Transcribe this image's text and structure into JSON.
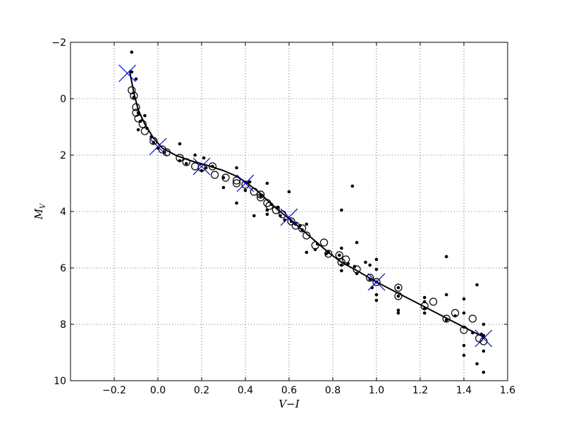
{
  "chart_data": {
    "type": "scatter",
    "title": "",
    "xlabel": "V−I",
    "ylabel_main": "M",
    "ylabel_sub": "V",
    "xlim": [
      -0.4,
      1.6
    ],
    "ylim": [
      -2,
      10
    ],
    "y_inverted": true,
    "grid": true,
    "grid_style": "dotted",
    "x_ticks": [
      -0.2,
      0.0,
      0.2,
      0.4,
      0.6,
      0.8,
      1.0,
      1.2,
      1.4,
      1.6
    ],
    "x_tick_labels": [
      "−0.2",
      "0.0",
      "0.2",
      "0.4",
      "0.6",
      "0.8",
      "1.0",
      "1.2",
      "1.4",
      "1.6"
    ],
    "y_ticks": [
      -2,
      0,
      2,
      4,
      6,
      8,
      10
    ],
    "y_tick_labels": [
      "−2",
      "0",
      "2",
      "4",
      "6",
      "8",
      "10"
    ],
    "series": [
      {
        "marker": "dot",
        "color": "#000000",
        "points": [
          [
            -0.12,
            -1.65
          ],
          [
            -0.12,
            -0.95
          ],
          [
            -0.1,
            -0.7
          ],
          [
            -0.11,
            -0.05
          ],
          [
            -0.09,
            0.5
          ],
          [
            -0.08,
            0.8
          ],
          [
            -0.09,
            1.1
          ],
          [
            -0.06,
            0.6
          ],
          [
            -0.05,
            1.05
          ],
          [
            -0.03,
            1.35
          ],
          [
            -0.02,
            1.55
          ],
          [
            0.0,
            1.75
          ],
          [
            0.03,
            1.9
          ],
          [
            0.1,
            1.6
          ],
          [
            0.1,
            2.2
          ],
          [
            0.13,
            2.3
          ],
          [
            0.17,
            2.0
          ],
          [
            0.2,
            2.55
          ],
          [
            0.21,
            2.1
          ],
          [
            0.22,
            2.45
          ],
          [
            0.25,
            2.4
          ],
          [
            0.3,
            2.8
          ],
          [
            0.3,
            3.15
          ],
          [
            0.36,
            2.45
          ],
          [
            0.36,
            3.7
          ],
          [
            0.4,
            3.25
          ],
          [
            0.42,
            2.95
          ],
          [
            0.44,
            4.15
          ],
          [
            0.47,
            3.45
          ],
          [
            0.5,
            3.0
          ],
          [
            0.5,
            3.95
          ],
          [
            0.5,
            4.1
          ],
          [
            0.52,
            3.75
          ],
          [
            0.55,
            3.85
          ],
          [
            0.56,
            4.15
          ],
          [
            0.58,
            4.3
          ],
          [
            0.6,
            3.3
          ],
          [
            0.61,
            4.35
          ],
          [
            0.63,
            4.45
          ],
          [
            0.65,
            4.5
          ],
          [
            0.66,
            4.65
          ],
          [
            0.68,
            4.45
          ],
          [
            0.68,
            5.45
          ],
          [
            0.72,
            5.35
          ],
          [
            0.73,
            5.15
          ],
          [
            0.77,
            5.5
          ],
          [
            0.78,
            5.45
          ],
          [
            0.83,
            5.55
          ],
          [
            0.84,
            3.95
          ],
          [
            0.84,
            5.3
          ],
          [
            0.84,
            5.9
          ],
          [
            0.84,
            6.1
          ],
          [
            0.87,
            5.85
          ],
          [
            0.89,
            3.1
          ],
          [
            0.9,
            5.95
          ],
          [
            0.91,
            5.1
          ],
          [
            0.91,
            6.2
          ],
          [
            0.95,
            5.8
          ],
          [
            0.97,
            5.9
          ],
          [
            0.97,
            6.4
          ],
          [
            0.98,
            6.7
          ],
          [
            1.0,
            5.7
          ],
          [
            1.0,
            6.05
          ],
          [
            1.0,
            6.5
          ],
          [
            1.0,
            6.95
          ],
          [
            1.0,
            7.15
          ],
          [
            1.1,
            6.7
          ],
          [
            1.1,
            7.0
          ],
          [
            1.1,
            7.5
          ],
          [
            1.1,
            7.6
          ],
          [
            1.22,
            7.05
          ],
          [
            1.22,
            7.2
          ],
          [
            1.22,
            7.45
          ],
          [
            1.22,
            7.6
          ],
          [
            1.32,
            5.6
          ],
          [
            1.32,
            6.95
          ],
          [
            1.32,
            7.85
          ],
          [
            1.36,
            7.7
          ],
          [
            1.4,
            7.1
          ],
          [
            1.4,
            7.6
          ],
          [
            1.4,
            8.1
          ],
          [
            1.4,
            8.75
          ],
          [
            1.4,
            9.1
          ],
          [
            1.44,
            8.3
          ],
          [
            1.46,
            6.6
          ],
          [
            1.46,
            9.4
          ],
          [
            1.48,
            8.35
          ],
          [
            1.49,
            8.0
          ],
          [
            1.49,
            8.4
          ],
          [
            1.49,
            8.95
          ],
          [
            1.49,
            9.7
          ]
        ]
      },
      {
        "marker": "open-circle",
        "color": "#000000",
        "points": [
          [
            -0.12,
            -0.3
          ],
          [
            -0.11,
            -0.1
          ],
          [
            -0.1,
            0.3
          ],
          [
            -0.1,
            0.5
          ],
          [
            -0.09,
            0.7
          ],
          [
            -0.07,
            0.9
          ],
          [
            -0.06,
            1.15
          ],
          [
            -0.02,
            1.5
          ],
          [
            0.02,
            1.8
          ],
          [
            0.04,
            1.9
          ],
          [
            0.1,
            2.1
          ],
          [
            0.13,
            2.25
          ],
          [
            0.17,
            2.4
          ],
          [
            0.2,
            2.45
          ],
          [
            0.25,
            2.4
          ],
          [
            0.26,
            2.7
          ],
          [
            0.31,
            2.8
          ],
          [
            0.36,
            2.9
          ],
          [
            0.36,
            3.0
          ],
          [
            0.4,
            3.05
          ],
          [
            0.44,
            3.3
          ],
          [
            0.47,
            3.4
          ],
          [
            0.47,
            3.5
          ],
          [
            0.5,
            3.7
          ],
          [
            0.51,
            3.8
          ],
          [
            0.54,
            3.95
          ],
          [
            0.57,
            4.1
          ],
          [
            0.61,
            4.35
          ],
          [
            0.63,
            4.5
          ],
          [
            0.66,
            4.6
          ],
          [
            0.68,
            4.85
          ],
          [
            0.72,
            5.2
          ],
          [
            0.76,
            5.1
          ],
          [
            0.78,
            5.5
          ],
          [
            0.83,
            5.55
          ],
          [
            0.84,
            5.8
          ],
          [
            0.86,
            5.7
          ],
          [
            0.91,
            6.05
          ],
          [
            0.97,
            6.35
          ],
          [
            1.0,
            6.5
          ],
          [
            1.1,
            6.7
          ],
          [
            1.1,
            7.0
          ],
          [
            1.22,
            7.35
          ],
          [
            1.26,
            7.2
          ],
          [
            1.32,
            7.8
          ],
          [
            1.36,
            7.6
          ],
          [
            1.4,
            8.2
          ],
          [
            1.44,
            7.8
          ],
          [
            1.47,
            8.5
          ],
          [
            1.49,
            8.6
          ]
        ]
      },
      {
        "marker": "x",
        "color": "#0000cc",
        "points": [
          [
            -0.14,
            -0.9
          ],
          [
            0.0,
            1.7
          ],
          [
            0.2,
            2.4
          ],
          [
            0.4,
            3.0
          ],
          [
            0.6,
            4.2
          ],
          [
            1.0,
            6.5
          ],
          [
            1.49,
            8.5
          ]
        ]
      },
      {
        "marker": "line",
        "color": "#000000",
        "points": [
          [
            -0.13,
            -1.0
          ],
          [
            -0.11,
            -0.2
          ],
          [
            -0.09,
            0.4
          ],
          [
            -0.06,
            0.9
          ],
          [
            -0.02,
            1.4
          ],
          [
            0.02,
            1.75
          ],
          [
            0.08,
            2.0
          ],
          [
            0.15,
            2.2
          ],
          [
            0.22,
            2.35
          ],
          [
            0.3,
            2.55
          ],
          [
            0.36,
            2.75
          ],
          [
            0.4,
            2.95
          ],
          [
            0.46,
            3.3
          ],
          [
            0.5,
            3.6
          ],
          [
            0.55,
            3.95
          ],
          [
            0.6,
            4.25
          ],
          [
            0.66,
            4.65
          ],
          [
            0.72,
            5.05
          ],
          [
            0.78,
            5.45
          ],
          [
            0.84,
            5.8
          ],
          [
            0.9,
            6.05
          ],
          [
            1.0,
            6.5
          ],
          [
            1.1,
            6.9
          ],
          [
            1.2,
            7.3
          ],
          [
            1.3,
            7.7
          ],
          [
            1.4,
            8.1
          ],
          [
            1.49,
            8.45
          ]
        ]
      }
    ]
  }
}
